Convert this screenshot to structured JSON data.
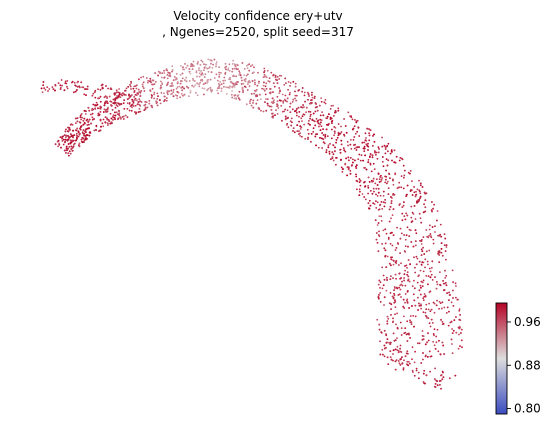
{
  "chart_data": {
    "type": "scatter",
    "title": "Velocity confidence ery+utv",
    "subtitle": ", Ngenes=2520, split seed=317",
    "axes_visible": false,
    "description_of_points": "embedding scatter of cells, colored by velocity confidence",
    "colormap": "coolwarm",
    "colors": {
      "low": "#3b4cc0",
      "mid": "#dddddd",
      "high": "#b40426"
    },
    "colorbar": {
      "vmin": 0.79,
      "vmax": 0.995,
      "ticks": [
        {
          "value": 0.96,
          "label": "0.96"
        },
        {
          "value": 0.88,
          "label": "0.88"
        },
        {
          "value": 0.8,
          "label": "0.80"
        }
      ],
      "placement": "right-bottom"
    },
    "point_count_rendered": 3200
  }
}
